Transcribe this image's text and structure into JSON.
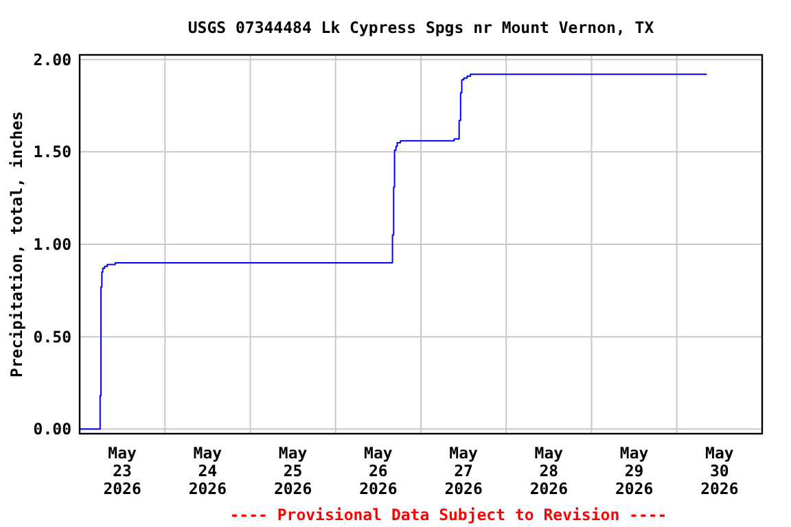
{
  "chart_data": {
    "type": "step",
    "title": "USGS 07344484 Lk Cypress Spgs nr Mount Vernon, TX",
    "ylabel": "Precipitation, total, inches",
    "annotations": [
      "---- Provisional Data Subject to Revision ----"
    ],
    "x": [
      "2026-05-23T00:00",
      "2026-05-23T05:45",
      "2026-05-23T06:00",
      "2026-05-23T06:15",
      "2026-05-23T06:30",
      "2026-05-23T07:00",
      "2026-05-23T07:45",
      "2026-05-23T10:00",
      "2026-05-26T16:00",
      "2026-05-26T16:20",
      "2026-05-26T16:35",
      "2026-05-26T17:00",
      "2026-05-26T17:20",
      "2026-05-26T18:15",
      "2026-05-27T09:20",
      "2026-05-27T10:45",
      "2026-05-27T11:10",
      "2026-05-27T11:30",
      "2026-05-27T12:05",
      "2026-05-27T13:00",
      "2026-05-27T13:55",
      "2026-05-30T08:25"
    ],
    "series": [
      {
        "color": "#0000ff",
        "values": [
          0,
          0.18,
          0.77,
          0.85,
          0.87,
          0.88,
          0.89,
          0.9,
          1.05,
          1.31,
          1.51,
          1.53,
          1.55,
          1.56,
          1.57,
          1.67,
          1.82,
          1.89,
          1.9,
          1.91,
          1.92,
          1.92
        ]
      }
    ],
    "xlim": [
      "2026-05-23",
      "2026-05-31"
    ],
    "xticks": [
      {
        "value": "2026-05-23T12:00",
        "label": "May\n23\n2026"
      },
      {
        "value": "2026-05-24",
        "label": null
      },
      {
        "value": "2026-05-24T12:00",
        "label": "May\n24\n2026"
      },
      {
        "value": "2026-05-25",
        "label": null
      },
      {
        "value": "2026-05-25T12:00",
        "label": "May\n25\n2026"
      },
      {
        "value": "2026-05-26",
        "label": null
      },
      {
        "value": "2026-05-26T12:00",
        "label": "May\n26\n2026"
      },
      {
        "value": "2026-05-27",
        "label": null
      },
      {
        "value": "2026-05-27T12:00",
        "label": "May\n27\n2026"
      },
      {
        "value": "2026-05-28",
        "label": null
      },
      {
        "value": "2026-05-28T12:00",
        "label": "May\n28\n2026"
      },
      {
        "value": "2026-05-29",
        "label": null
      },
      {
        "value": "2026-05-29T12:00",
        "label": "May\n29\n2026"
      },
      {
        "value": "2026-05-30",
        "label": null
      },
      {
        "value": "2026-05-30T12:00",
        "label": "May\n30\n2026"
      }
    ],
    "ylim": [
      -0.025,
      2.025
    ],
    "yticks": [
      {
        "value": 0,
        "label": "0.00"
      },
      {
        "value": 0.5,
        "label": "0.50"
      },
      {
        "value": 1,
        "label": "1.00"
      },
      {
        "value": 1.5,
        "label": "1.50"
      },
      {
        "value": 2,
        "label": "2.00"
      }
    ],
    "grid": true,
    "line_style": "solid"
  }
}
